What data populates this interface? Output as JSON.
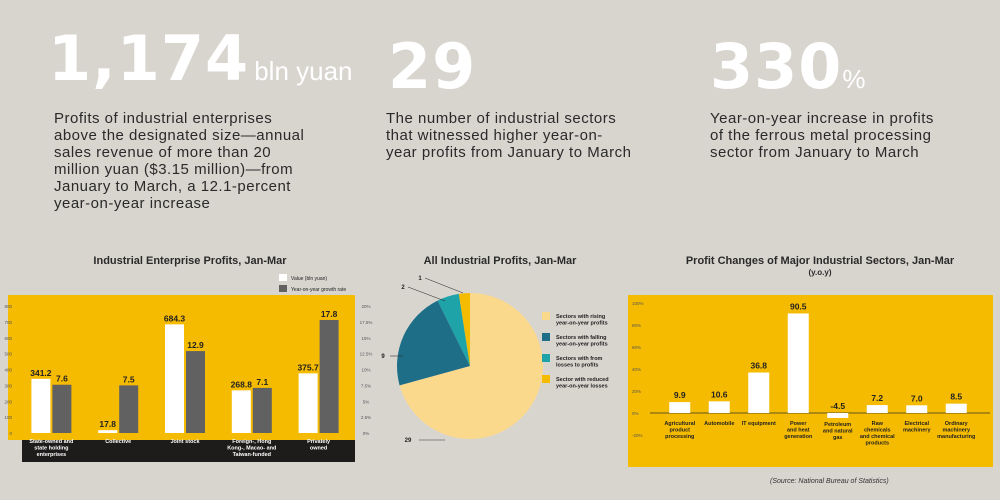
{
  "stats": [
    {
      "number": "1,174",
      "unit": "bln yuan",
      "desc": [
        "Profits of industrial enterprises",
        "above the designated size—annual",
        "sales revenue of more than 20",
        "million yuan ($3.15 million)—from",
        "January to March, a 12.1-percent",
        "year-on-year increase"
      ]
    },
    {
      "number": "29",
      "unit": "",
      "desc": [
        "The number of industrial sectors",
        "that witnessed higher year-on-",
        "year profits from January to March"
      ]
    },
    {
      "number": "330",
      "unit": "%",
      "desc": [
        "Year-on-year increase in profits",
        "of the ferrous metal processing",
        "sector from January to March"
      ]
    }
  ],
  "chart_data": [
    {
      "type": "bar",
      "title": "Industrial Enterprise Profits, Jan-Mar",
      "categories": [
        "State-owned and state holding enterprises",
        "Collective",
        "Joint stock",
        "Foreign-, Hong Kong-, Macao- and Taiwan-funded",
        "Privately owned"
      ],
      "category_lines": [
        [
          "State-owned and",
          "state holding",
          "enterprises"
        ],
        [
          "Collective"
        ],
        [
          "Joint stock"
        ],
        [
          "Foreign-, Hong",
          "Kong-, Macao- and",
          "Taiwan-funded"
        ],
        [
          "Privately",
          "owned"
        ]
      ],
      "series": [
        {
          "name": "Value (bln yuan)",
          "values": [
            341.2,
            17.8,
            684.3,
            268.8,
            375.7
          ],
          "color": "#ffffff"
        },
        {
          "name": "Year-on-year growth rate",
          "values": [
            7.6,
            7.5,
            12.9,
            7.1,
            17.8
          ],
          "color": "#616161"
        }
      ],
      "ylim_left": [
        0,
        800
      ],
      "ylim_right": [
        0,
        20
      ],
      "yticks_left": [
        "0",
        "100",
        "200",
        "300",
        "400",
        "500",
        "600",
        "700",
        "800"
      ],
      "yticks_right": [
        "0%",
        "2.5%",
        "5%",
        "7.5%",
        "10%",
        "12.5%",
        "15%",
        "17.5%",
        "20%"
      ],
      "colors": {
        "panel": "#f5bb00",
        "footer": "#1e1b1b"
      }
    },
    {
      "type": "pie",
      "title": "All Industrial Profits, Jan-Mar",
      "slices": [
        {
          "label": "Sectors with rising year-on-year profits",
          "lines": [
            "Sectors with rising",
            "year-on-year profits"
          ],
          "value": 29,
          "display": "29",
          "color": "#fbd98c"
        },
        {
          "label": "Sectors with falling year-on-year profits",
          "lines": [
            "Sectors with falling",
            "year-on-year profits"
          ],
          "value": 9,
          "display": "9",
          "color": "#1f6e88"
        },
        {
          "label": "Sectors with from losses to profits",
          "lines": [
            "Sectors with from",
            "losses to profits"
          ],
          "value": 2,
          "display": "2",
          "color": "#1ea3a8"
        },
        {
          "label": "Sector with reduced year-on-year losses",
          "lines": [
            "Sector with reduced",
            "year-on-year losses"
          ],
          "value": 1,
          "display": "1",
          "color": "#f5bb00"
        }
      ]
    },
    {
      "type": "bar",
      "title": "Profit Changes of Major Industrial Sectors, Jan-Mar",
      "subtitle": "(y.o.y)",
      "categories": [
        "Agricultural product processing",
        "Automobile",
        "IT equipment",
        "Power and heat generation",
        "Petroleum and natural gas",
        "Raw chemicals and chemical products",
        "Electrical machinery",
        "Ordinary machinery manufacturing"
      ],
      "category_lines": [
        [
          "Agricultural",
          "product",
          "processing"
        ],
        [
          "Automobile"
        ],
        [
          "IT equipment"
        ],
        [
          "Power",
          "and heat",
          "generation"
        ],
        [
          "Petroleum",
          "and natural",
          "gas"
        ],
        [
          "Raw",
          "chemicals",
          "and chemical",
          "products"
        ],
        [
          "Electrical",
          "machinery"
        ],
        [
          "Ordinary",
          "machinery",
          "manufacturing"
        ]
      ],
      "values": [
        9.9,
        10.6,
        36.8,
        90.5,
        -4.5,
        7.2,
        7.0,
        8.5
      ],
      "labels": [
        "9.9",
        "10.6",
        "36.8",
        "90.5",
        "-4.5",
        "7.2",
        "7.0",
        "8.5"
      ],
      "ylim": [
        -20,
        100
      ],
      "yticks": [
        "-20%",
        "0%",
        "20%",
        "40%",
        "60%",
        "80%",
        "100%"
      ],
      "colors": {
        "panel": "#f5bb00",
        "bar": "#ffffff"
      }
    }
  ],
  "source": "(Source: National Bureau of Statistics)"
}
